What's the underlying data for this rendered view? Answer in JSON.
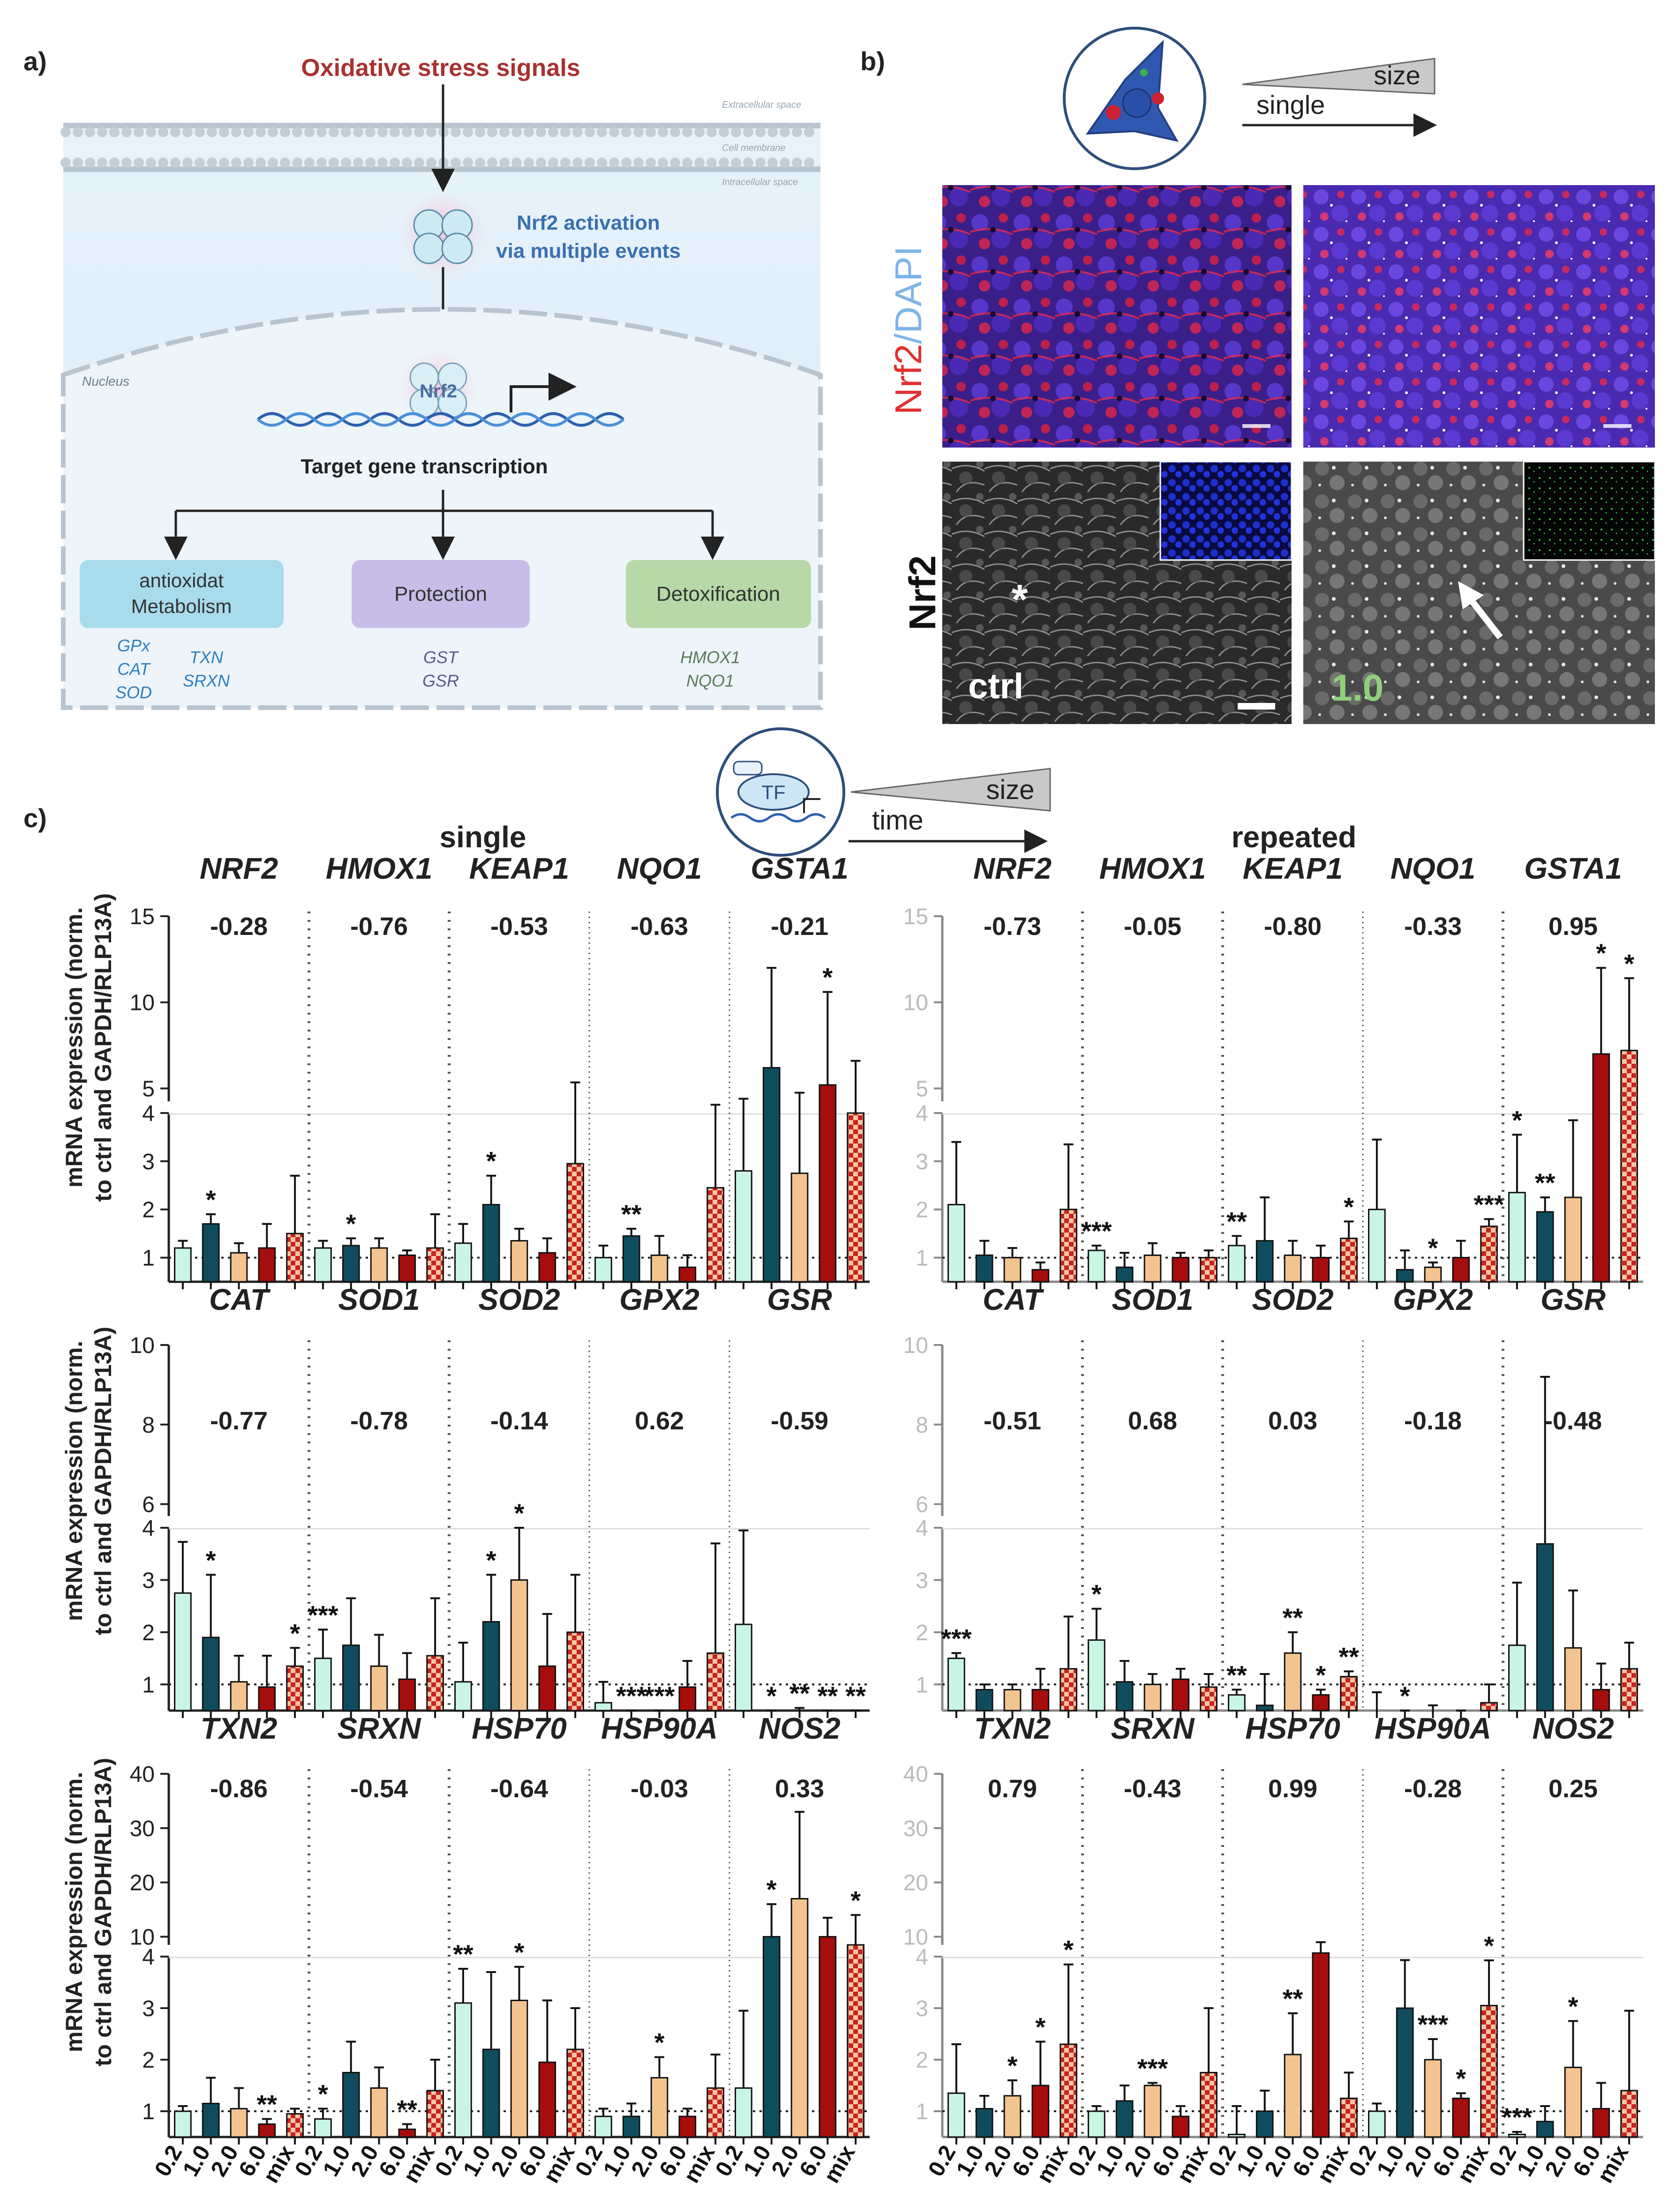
{
  "panel_a": {
    "label": "a)",
    "signal": "Oxidative stress signals",
    "extracellular": "Extracellular space",
    "membrane": "Cell membrane",
    "intracellular": "Intracellular space",
    "activation": [
      "Nrf2 activation",
      "via multiple events"
    ],
    "nucleus": "Nucleus",
    "nrf2": "Nrf2",
    "transcription": "Target gene transcription",
    "boxes": [
      {
        "title": [
          "antioxidat",
          "Metabolism"
        ],
        "genes": [
          "GPx",
          "CAT",
          "SOD",
          "TXN",
          "SRXN"
        ]
      },
      {
        "title": [
          "Protection"
        ],
        "genes": [
          "GST",
          "GSR"
        ]
      },
      {
        "title": [
          "Detoxification"
        ],
        "genes": [
          "HMOX1",
          "NQO1"
        ]
      }
    ]
  },
  "panel_b": {
    "label": "b)",
    "size": "size",
    "single": "single",
    "ylabel_top_a": "Nrf2",
    "ylabel_top_b": "/DAPI",
    "ylabel_bottom": "Nrf2",
    "ctrl": "ctrl",
    "dose": "1.0",
    "star": "*"
  },
  "panel_c": {
    "label": "c)",
    "tf": "TF",
    "size": "size",
    "time": "time",
    "single": "single",
    "repeated": "repeated",
    "ylabel": [
      "mRNA expression (norm.",
      "to ctrl and GAPDH/RLP13A)"
    ],
    "x_ticks": [
      "0.2",
      "1.0",
      "2.0",
      "6.0",
      "mix"
    ],
    "colors": {
      "0.2": "#c9f5e4",
      "1.0": "#0f4d5e",
      "2.0": "#f3c48f",
      "6.0": "#a60d0d",
      "mix": "#c8231d"
    }
  },
  "chart_data": [
    {
      "type": "bar",
      "condition": "single",
      "row": 1,
      "groups": [
        "NRF2",
        "HMOX1",
        "KEAP1",
        "NQO1",
        "GSTA1"
      ],
      "correlations": [
        "-0.28",
        "-0.76",
        "-0.53",
        "-0.63",
        "-0.21"
      ],
      "categories": [
        "0.2",
        "1.0",
        "2.0",
        "6.0",
        "mix"
      ],
      "y_lower_ticks": [
        1,
        2,
        3,
        4
      ],
      "y_upper_ticks": [
        5,
        10,
        15
      ],
      "break_at": 4,
      "values": [
        [
          1.2,
          1.7,
          1.1,
          1.2,
          1.5
        ],
        [
          1.2,
          1.25,
          1.2,
          1.05,
          1.2
        ],
        [
          1.3,
          2.1,
          1.35,
          1.1,
          2.95
        ],
        [
          1.0,
          1.45,
          1.05,
          0.8,
          2.45
        ],
        [
          2.8,
          6.2,
          2.75,
          5.2,
          4.0
        ]
      ],
      "errors": [
        [
          0.15,
          0.2,
          0.2,
          0.5,
          1.2
        ],
        [
          0.15,
          0.15,
          0.2,
          0.1,
          0.7
        ],
        [
          0.4,
          0.6,
          0.25,
          0.3,
          2.4
        ],
        [
          0.25,
          0.15,
          0.4,
          0.25,
          1.6
        ],
        [
          1.6,
          5.8,
          2.0,
          5.4,
          2.6
        ]
      ],
      "significance": [
        [
          "",
          "*",
          "",
          "",
          ""
        ],
        [
          "",
          "*",
          "",
          "",
          ""
        ],
        [
          "",
          "*",
          "",
          "",
          ""
        ],
        [
          "",
          "**",
          "",
          "",
          ""
        ],
        [
          "",
          "",
          "",
          "*",
          ""
        ]
      ]
    },
    {
      "type": "bar",
      "condition": "repeated",
      "row": 1,
      "groups": [
        "NRF2",
        "HMOX1",
        "KEAP1",
        "NQO1",
        "GSTA1"
      ],
      "correlations": [
        "-0.73",
        "-0.05",
        "-0.80",
        "-0.33",
        "0.95"
      ],
      "categories": [
        "0.2",
        "1.0",
        "2.0",
        "6.0",
        "mix"
      ],
      "y_lower_ticks": [
        1,
        2,
        3,
        4
      ],
      "y_upper_ticks": [
        5,
        10,
        15
      ],
      "break_at": 4,
      "values": [
        [
          2.1,
          1.05,
          1.0,
          0.75,
          2.0
        ],
        [
          1.15,
          0.8,
          1.05,
          1.0,
          1.0
        ],
        [
          1.25,
          1.35,
          1.05,
          1.0,
          1.4
        ],
        [
          2.0,
          0.75,
          0.8,
          1.0,
          1.65
        ],
        [
          2.35,
          1.95,
          2.25,
          7.0,
          7.2
        ]
      ],
      "errors": [
        [
          1.3,
          0.3,
          0.2,
          0.15,
          1.35
        ],
        [
          0.1,
          0.3,
          0.25,
          0.1,
          0.15
        ],
        [
          0.2,
          0.9,
          0.3,
          0.25,
          0.35
        ],
        [
          1.45,
          0.4,
          0.1,
          0.35,
          0.15
        ],
        [
          1.2,
          0.3,
          1.6,
          5.0,
          4.2
        ]
      ],
      "significance": [
        [
          "",
          "",
          "",
          "",
          ""
        ],
        [
          "***",
          "",
          "",
          "",
          ""
        ],
        [
          "**",
          "",
          "",
          "",
          "*"
        ],
        [
          "",
          "",
          "*",
          "",
          "***"
        ],
        [
          "*",
          "**",
          "",
          "*",
          "*"
        ]
      ]
    },
    {
      "type": "bar",
      "condition": "single",
      "row": 2,
      "groups": [
        "CAT",
        "SOD1",
        "SOD2",
        "GPX2",
        "GSR"
      ],
      "correlations": [
        "-0.77",
        "-0.78",
        "-0.14",
        "0.62",
        "-0.59"
      ],
      "categories": [
        "0.2",
        "1.0",
        "2.0",
        "6.0",
        "mix"
      ],
      "y_lower_ticks": [
        1,
        2,
        3,
        4
      ],
      "y_upper_ticks": [
        6,
        8,
        10
      ],
      "break_at": 4,
      "values": [
        [
          2.75,
          1.9,
          1.05,
          0.95,
          1.35
        ],
        [
          1.5,
          1.75,
          1.35,
          1.1,
          1.55
        ],
        [
          1.05,
          2.2,
          3.0,
          1.35,
          2.0
        ],
        [
          0.65,
          0.1,
          0.15,
          0.95,
          1.6
        ],
        [
          2.15,
          0.3,
          0.3,
          0.15,
          0.2
        ]
      ],
      "errors": [
        [
          2.3,
          1.2,
          0.5,
          0.6,
          0.35
        ],
        [
          0.55,
          0.9,
          0.6,
          0.5,
          1.1
        ],
        [
          0.75,
          0.9,
          1.0,
          1.0,
          1.1
        ],
        [
          0.4,
          0.05,
          0.1,
          0.5,
          2.1
        ],
        [
          1.8,
          0.2,
          0.25,
          0.1,
          0.1
        ]
      ],
      "significance": [
        [
          "",
          "*",
          "",
          "",
          "*"
        ],
        [
          "***",
          "",
          "",
          "",
          ""
        ],
        [
          "",
          "*",
          "*",
          "",
          ""
        ],
        [
          "",
          "***",
          "***",
          "",
          ""
        ],
        [
          "",
          "*",
          "**",
          "**",
          "**"
        ]
      ]
    },
    {
      "type": "bar",
      "condition": "repeated",
      "row": 2,
      "groups": [
        "CAT",
        "SOD1",
        "SOD2",
        "GPX2",
        "GSR"
      ],
      "correlations": [
        "-0.51",
        "0.68",
        "0.03",
        "-0.18",
        "-0.48"
      ],
      "categories": [
        "0.2",
        "1.0",
        "2.0",
        "6.0",
        "mix"
      ],
      "y_lower_ticks": [
        1,
        2,
        3,
        4
      ],
      "y_upper_ticks": [
        6,
        8,
        10
      ],
      "break_at": 4,
      "values": [
        [
          1.5,
          0.9,
          0.9,
          0.9,
          1.3
        ],
        [
          1.85,
          1.05,
          1.0,
          1.1,
          0.95
        ],
        [
          0.8,
          0.6,
          1.6,
          0.8,
          1.15
        ],
        [
          0.45,
          0.15,
          0.4,
          0.35,
          0.65
        ],
        [
          1.75,
          5.0,
          1.7,
          0.9,
          1.3
        ]
      ],
      "errors": [
        [
          0.1,
          0.1,
          0.1,
          0.4,
          1.0
        ],
        [
          0.6,
          0.4,
          0.2,
          0.2,
          0.25
        ],
        [
          0.1,
          0.6,
          0.4,
          0.1,
          0.1
        ],
        [
          0.4,
          0.2,
          0.2,
          0.1,
          0.35
        ],
        [
          1.2,
          4.2,
          1.1,
          0.5,
          0.5
        ]
      ],
      "significance": [
        [
          "***",
          "",
          "",
          "",
          ""
        ],
        [
          "*",
          "",
          "",
          "",
          ""
        ],
        [
          "**",
          "",
          "**",
          "*",
          "**"
        ],
        [
          "",
          "*",
          "",
          "",
          ""
        ],
        [
          "",
          "",
          "",
          "",
          ""
        ]
      ]
    },
    {
      "type": "bar",
      "condition": "single",
      "row": 3,
      "groups": [
        "TXN2",
        "SRXN",
        "HSP70",
        "HSP90A",
        "NOS2"
      ],
      "correlations": [
        "-0.86",
        "-0.54",
        "-0.64",
        "-0.03",
        "0.33"
      ],
      "categories": [
        "0.2",
        "1.0",
        "2.0",
        "6.0",
        "mix"
      ],
      "y_lower_ticks": [
        1,
        2,
        3,
        4
      ],
      "y_upper_ticks": [
        10,
        20,
        30,
        40
      ],
      "break_at": 4,
      "values": [
        [
          1.0,
          1.15,
          1.05,
          0.75,
          0.95
        ],
        [
          0.85,
          1.75,
          1.45,
          0.65,
          1.4
        ],
        [
          3.1,
          2.2,
          3.15,
          1.95,
          2.2
        ],
        [
          0.9,
          0.9,
          1.65,
          0.9,
          1.45
        ],
        [
          1.45,
          10.0,
          17.0,
          10.0,
          8.5
        ]
      ],
      "errors": [
        [
          0.1,
          0.5,
          0.4,
          0.1,
          0.1
        ],
        [
          0.2,
          0.6,
          0.4,
          0.1,
          0.6
        ],
        [
          1.0,
          1.5,
          1.3,
          1.2,
          0.8
        ],
        [
          0.15,
          0.25,
          0.4,
          0.15,
          0.65
        ],
        [
          1.5,
          6.0,
          16.0,
          3.5,
          5.5
        ]
      ],
      "significance": [
        [
          "",
          "",
          "",
          "**",
          ""
        ],
        [
          "*",
          "",
          "",
          "**",
          ""
        ],
        [
          "**",
          "",
          "*",
          "",
          ""
        ],
        [
          "",
          "",
          "*",
          "",
          ""
        ],
        [
          "",
          "*",
          "",
          "",
          "*"
        ]
      ]
    },
    {
      "type": "bar",
      "condition": "repeated",
      "row": 3,
      "groups": [
        "TXN2",
        "SRXN",
        "HSP70",
        "HSP90A",
        "NOS2"
      ],
      "correlations": [
        "0.79",
        "-0.43",
        "0.99",
        "-0.28",
        "0.25"
      ],
      "categories": [
        "0.2",
        "1.0",
        "2.0",
        "6.0",
        "mix"
      ],
      "y_lower_ticks": [
        1,
        2,
        3,
        4
      ],
      "y_upper_ticks": [
        10,
        20,
        30,
        40
      ],
      "break_at": 4,
      "values": [
        [
          1.35,
          1.05,
          1.3,
          1.5,
          2.3
        ],
        [
          1.0,
          1.2,
          1.5,
          0.9,
          1.75
        ],
        [
          0.55,
          1.0,
          2.1,
          7.0,
          1.25
        ],
        [
          1.0,
          3.0,
          2.0,
          1.25,
          3.05
        ],
        [
          0.55,
          0.8,
          1.85,
          1.05,
          1.4
        ]
      ],
      "errors": [
        [
          0.95,
          0.25,
          0.3,
          0.85,
          2.6
        ],
        [
          0.1,
          0.3,
          0.05,
          0.2,
          1.25
        ],
        [
          0.55,
          0.4,
          0.8,
          2.0,
          0.5
        ],
        [
          0.15,
          2.7,
          0.4,
          0.1,
          2.6
        ],
        [
          0.05,
          0.3,
          0.9,
          0.5,
          1.55
        ]
      ],
      "significance": [
        [
          "",
          "",
          "*",
          "*",
          "*"
        ],
        [
          "",
          "",
          "***",
          "",
          ""
        ],
        [
          "",
          "",
          "**",
          "",
          ""
        ],
        [
          "",
          "",
          "***",
          "*",
          "*"
        ],
        [
          "***",
          "",
          "*",
          "",
          ""
        ]
      ]
    }
  ]
}
